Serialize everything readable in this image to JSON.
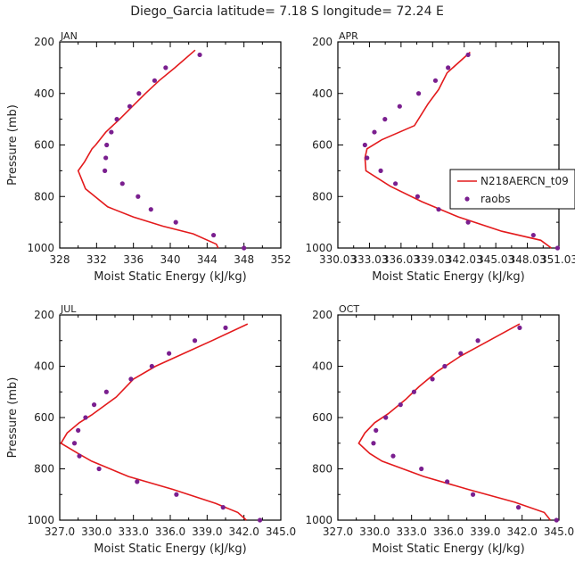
{
  "figure": {
    "title": "Diego_Garcia   latitude= 7.18 S longitude= 72.24 E"
  },
  "chart_data": [
    {
      "type": "line",
      "panel": "JAN",
      "xlabel": "Moist Static Energy (kJ/kg)",
      "ylabel": "Pressure (mb)",
      "xlim": [
        328,
        352
      ],
      "ylim": [
        1000,
        200
      ],
      "xticks": [
        "328",
        "332",
        "336",
        "340",
        "344",
        "348",
        "352"
      ],
      "yticks": [
        "200",
        "400",
        "600",
        "800",
        "1000"
      ],
      "xtick_values": [
        328,
        332,
        336,
        340,
        344,
        348,
        352
      ],
      "ytick_values": [
        200,
        400,
        600,
        800,
        1000
      ],
      "series": [
        {
          "name": "N218AERCN_t09",
          "style": "line",
          "color": "#e31a1c",
          "points": [
            [
              342.7,
              232
            ],
            [
              340.5,
              300
            ],
            [
              338.8,
              350
            ],
            [
              337.3,
              400
            ],
            [
              335.9,
              450
            ],
            [
              334.5,
              500
            ],
            [
              333.0,
              550
            ],
            [
              331.9,
              600
            ],
            [
              331.5,
              615
            ],
            [
              330.7,
              665
            ],
            [
              330.0,
              700
            ],
            [
              330.8,
              770
            ],
            [
              333.2,
              840
            ],
            [
              336.0,
              880
            ],
            [
              339.2,
              915
            ],
            [
              342.5,
              945
            ],
            [
              345.0,
              985
            ],
            [
              345.2,
              1000
            ]
          ]
        },
        {
          "name": "raobs",
          "style": "marker",
          "color": "#7a1f8f",
          "points": [
            [
              343.2,
              250
            ],
            [
              339.5,
              300
            ],
            [
              338.3,
              350
            ],
            [
              336.6,
              400
            ],
            [
              335.6,
              450
            ],
            [
              334.2,
              500
            ],
            [
              333.6,
              550
            ],
            [
              333.1,
              600
            ],
            [
              333.0,
              650
            ],
            [
              332.9,
              700
            ],
            [
              334.8,
              750
            ],
            [
              336.5,
              800
            ],
            [
              337.9,
              850
            ],
            [
              340.6,
              900
            ],
            [
              344.7,
              950
            ],
            [
              348.0,
              1000
            ]
          ]
        }
      ]
    },
    {
      "type": "line",
      "panel": "APR",
      "xlabel": "Moist Static Energy (kJ/kg)",
      "ylabel": "",
      "xlim": [
        330.03,
        351.03
      ],
      "ylim": [
        1000,
        200
      ],
      "xticks": [
        "330.03",
        "333.03",
        "336.03",
        "339.03",
        "342.03",
        "345.03",
        "348.03",
        "351.03"
      ],
      "yticks": [
        "200",
        "400",
        "600",
        "800",
        "1000"
      ],
      "xtick_values": [
        330.03,
        333.03,
        336.03,
        339.03,
        342.03,
        345.03,
        348.03,
        351.03
      ],
      "ytick_values": [
        200,
        400,
        600,
        800,
        1000
      ],
      "legend": {
        "location": "right",
        "entries": [
          "N218AERCN_t09",
          "raobs"
        ]
      },
      "series": [
        {
          "name": "N218AERCN_t09",
          "style": "line",
          "color": "#e31a1c",
          "points": [
            [
              342.6,
              240
            ],
            [
              340.4,
              320
            ],
            [
              339.6,
              385
            ],
            [
              338.6,
              440
            ],
            [
              337.3,
              525
            ],
            [
              334.2,
              580
            ],
            [
              332.8,
              615
            ],
            [
              332.6,
              650
            ],
            [
              332.7,
              700
            ],
            [
              335.0,
              760
            ],
            [
              338.0,
              820
            ],
            [
              341.5,
              880
            ],
            [
              345.6,
              935
            ],
            [
              349.3,
              970
            ],
            [
              350.3,
              1000
            ]
          ]
        },
        {
          "name": "raobs",
          "style": "marker",
          "color": "#7a1f8f",
          "points": [
            [
              342.4,
              250
            ],
            [
              340.5,
              300
            ],
            [
              339.3,
              350
            ],
            [
              337.7,
              400
            ],
            [
              335.9,
              450
            ],
            [
              334.5,
              500
            ],
            [
              333.5,
              550
            ],
            [
              332.6,
              600
            ],
            [
              332.8,
              650
            ],
            [
              334.1,
              700
            ],
            [
              335.5,
              750
            ],
            [
              337.6,
              800
            ],
            [
              339.6,
              850
            ],
            [
              342.4,
              900
            ],
            [
              348.6,
              950
            ],
            [
              350.9,
              1000
            ]
          ]
        }
      ]
    },
    {
      "type": "line",
      "panel": "JUL",
      "xlabel": "Moist Static Energy (kJ/kg)",
      "ylabel": "Pressure (mb)",
      "xlim": [
        327.0,
        345.0
      ],
      "ylim": [
        1000,
        200
      ],
      "xticks": [
        "327.0",
        "330.0",
        "333.0",
        "336.0",
        "339.0",
        "342.0",
        "345.0"
      ],
      "yticks": [
        "200",
        "400",
        "600",
        "800",
        "1000"
      ],
      "xtick_values": [
        327.0,
        330.0,
        333.0,
        336.0,
        339.0,
        342.0,
        345.0
      ],
      "ytick_values": [
        200,
        400,
        600,
        800,
        1000
      ],
      "series": [
        {
          "name": "N218AERCN_t09",
          "style": "line",
          "color": "#e31a1c",
          "points": [
            [
              342.3,
              235
            ],
            [
              339.4,
              300
            ],
            [
              337.1,
              350
            ],
            [
              334.8,
              400
            ],
            [
              333.0,
              450
            ],
            [
              331.6,
              520
            ],
            [
              329.6,
              590
            ],
            [
              328.6,
              620
            ],
            [
              327.6,
              660
            ],
            [
              327.1,
              700
            ],
            [
              328.5,
              740
            ],
            [
              329.6,
              770
            ],
            [
              332.6,
              830
            ],
            [
              336.2,
              880
            ],
            [
              339.7,
              935
            ],
            [
              341.5,
              970
            ],
            [
              342.2,
              1000
            ]
          ]
        },
        {
          "name": "raobs",
          "style": "marker",
          "color": "#7a1f8f",
          "points": [
            [
              340.5,
              250
            ],
            [
              338.0,
              300
            ],
            [
              335.9,
              350
            ],
            [
              334.5,
              400
            ],
            [
              332.8,
              450
            ],
            [
              330.8,
              500
            ],
            [
              329.8,
              550
            ],
            [
              329.1,
              600
            ],
            [
              328.5,
              650
            ],
            [
              328.2,
              700
            ],
            [
              328.6,
              750
            ],
            [
              330.2,
              800
            ],
            [
              333.3,
              850
            ],
            [
              336.5,
              900
            ],
            [
              340.3,
              950
            ],
            [
              343.3,
              1000
            ]
          ]
        }
      ]
    },
    {
      "type": "line",
      "panel": "OCT",
      "xlabel": "Moist Static Energy (kJ/kg)",
      "ylabel": "",
      "xlim": [
        327.0,
        345.0
      ],
      "ylim": [
        1000,
        200
      ],
      "xticks": [
        "327.0",
        "330.0",
        "333.0",
        "336.0",
        "339.0",
        "342.0",
        "345.0"
      ],
      "yticks": [
        "200",
        "400",
        "600",
        "800",
        "1000"
      ],
      "xtick_values": [
        327.0,
        330.0,
        333.0,
        336.0,
        339.0,
        342.0,
        345.0
      ],
      "ytick_values": [
        200,
        400,
        600,
        800,
        1000
      ],
      "series": [
        {
          "name": "N218AERCN_t09",
          "style": "line",
          "color": "#e31a1c",
          "points": [
            [
              341.8,
              235
            ],
            [
              339.3,
              300
            ],
            [
              337.0,
              360
            ],
            [
              335.1,
              420
            ],
            [
              333.6,
              480
            ],
            [
              332.5,
              530
            ],
            [
              331.1,
              585
            ],
            [
              330.0,
              620
            ],
            [
              329.2,
              660
            ],
            [
              328.7,
              700
            ],
            [
              329.6,
              740
            ],
            [
              330.6,
              770
            ],
            [
              334.0,
              830
            ],
            [
              337.6,
              880
            ],
            [
              341.4,
              930
            ],
            [
              343.8,
              970
            ],
            [
              344.3,
              1000
            ]
          ]
        },
        {
          "name": "raobs",
          "style": "marker",
          "color": "#7a1f8f",
          "points": [
            [
              341.8,
              250
            ],
            [
              338.4,
              300
            ],
            [
              337.0,
              350
            ],
            [
              335.7,
              400
            ],
            [
              334.7,
              450
            ],
            [
              333.2,
              500
            ],
            [
              332.1,
              550
            ],
            [
              330.9,
              600
            ],
            [
              330.1,
              650
            ],
            [
              329.9,
              700
            ],
            [
              331.5,
              750
            ],
            [
              333.8,
              800
            ],
            [
              335.9,
              850
            ],
            [
              338.0,
              900
            ],
            [
              341.7,
              950
            ],
            [
              344.8,
              1000
            ]
          ]
        }
      ]
    }
  ]
}
